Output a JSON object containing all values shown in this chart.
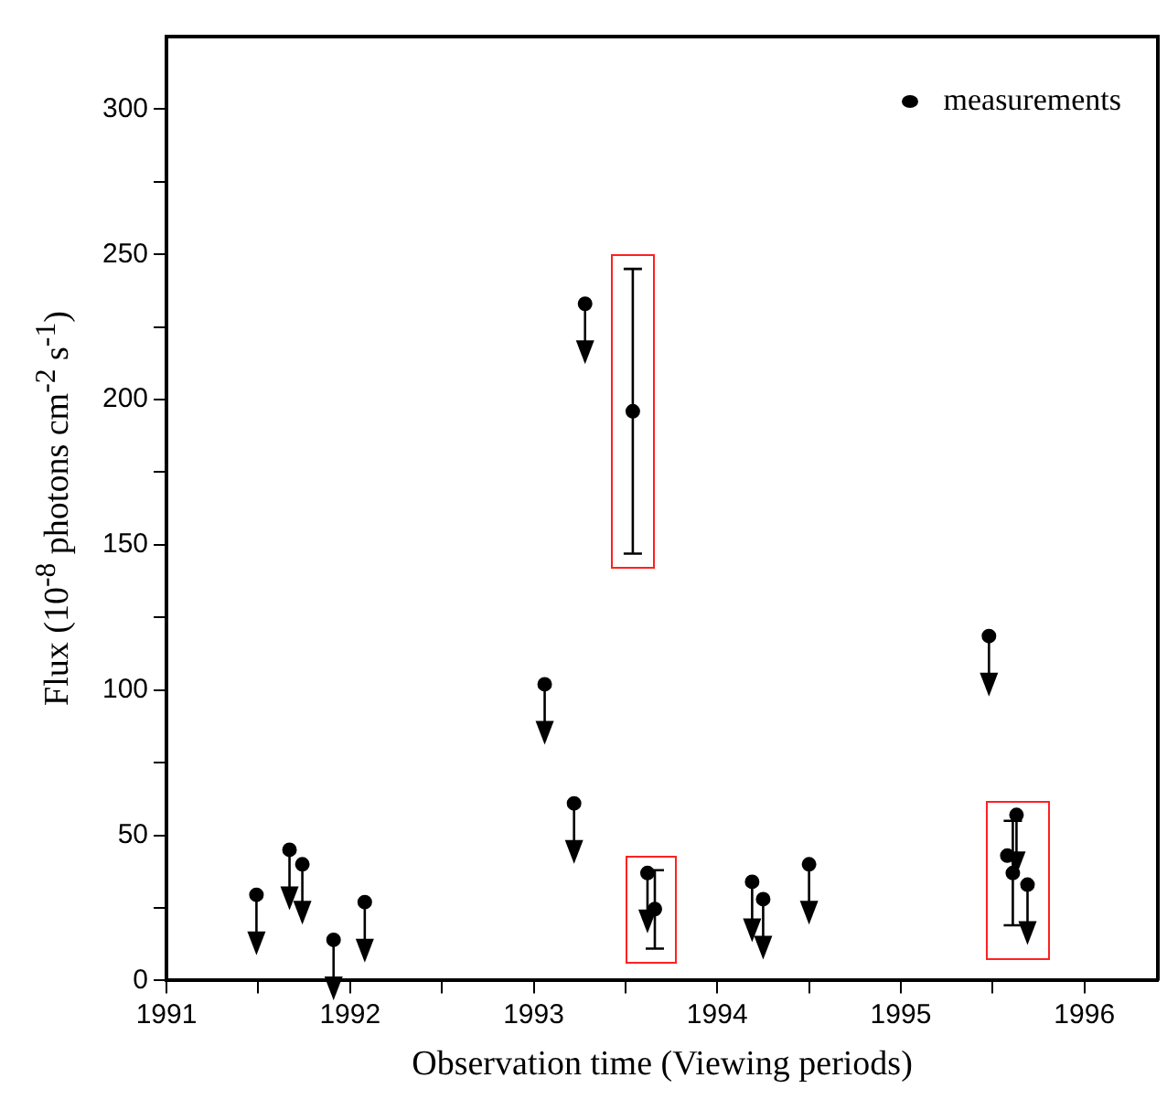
{
  "chart_data": {
    "type": "scatter",
    "xlabel": "Observation time (Viewing periods)",
    "ylabel": "Flux (10$^{-8}$ photons cm$^{-2}$ s$^{-1}$)",
    "xlim": [
      1991,
      1996.4
    ],
    "xticks": [
      1991,
      {
        "value": 1991.5,
        "label": null
      },
      1992,
      {
        "value": 1992.5,
        "label": null
      },
      1993,
      {
        "value": 1993.5,
        "label": null
      },
      1994,
      {
        "value": 1994.5,
        "label": null
      },
      1995,
      {
        "value": 1995.5,
        "label": null
      },
      1996
    ],
    "ylim": [
      0,
      325
    ],
    "yticks": [
      0,
      {
        "value": 25,
        "label": null
      },
      50,
      {
        "value": 75,
        "label": null
      },
      100,
      {
        "value": 125,
        "label": null
      },
      150,
      {
        "value": 175,
        "label": null
      },
      200,
      {
        "value": 225,
        "label": null
      },
      250,
      {
        "value": 275,
        "label": null
      },
      300
    ],
    "series": [
      {
        "name": "measurements",
        "color": "#000000",
        "x": [
          1993.54,
          1993.66,
          1995.58,
          1995.61
        ],
        "values": [
          196,
          24.6,
          43,
          37
        ],
        "errors": [
          [
            147,
            245
          ],
          [
            11,
            38
          ],
          null,
          [
            19,
            55
          ]
        ]
      },
      {
        "color": "#000000",
        "x": [
          1991.49,
          1991.67,
          1991.74,
          1991.91,
          1992.08,
          1993.06,
          1993.22,
          1993.28,
          1993.62,
          1994.19,
          1994.25,
          1994.5,
          1995.48,
          1995.63,
          1995.69
        ],
        "values": [
          29.5,
          45,
          40,
          14,
          27,
          102,
          61,
          233,
          37,
          34,
          28,
          40,
          118.6,
          57,
          33
        ]
      }
    ],
    "legend": "top right",
    "marker": "circle",
    "grid": false
  }
}
